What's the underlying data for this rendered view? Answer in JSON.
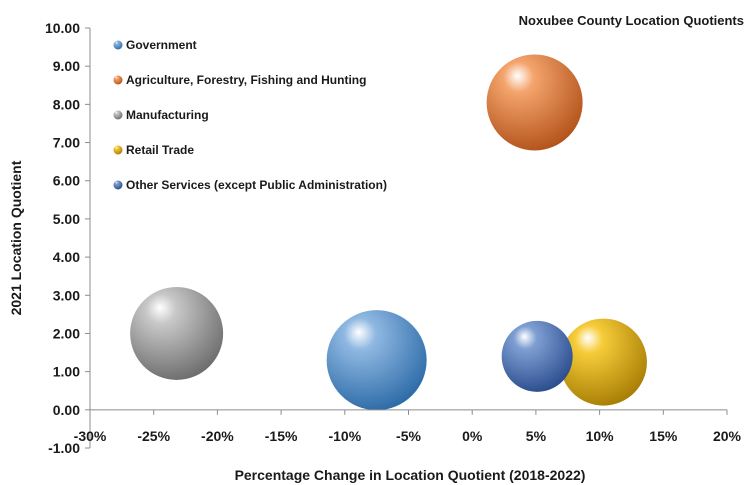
{
  "chart_data": {
    "type": "bubble",
    "title": "Noxubee County Location Quotients",
    "xlabel": "Percentage Change in Location Quotient (2018-2022)",
    "ylabel": "2021 Location Quotient",
    "xlim": [
      -30,
      20
    ],
    "ylim": [
      -1,
      10
    ],
    "x_ticks": [
      -30,
      -25,
      -20,
      -15,
      -10,
      -5,
      0,
      5,
      10,
      15,
      20
    ],
    "x_tick_labels": [
      "-30%",
      "-25%",
      "-20%",
      "-15%",
      "-10%",
      "-5%",
      "0%",
      "5%",
      "10%",
      "15%",
      "20%"
    ],
    "y_ticks": [
      -1,
      0,
      1,
      2,
      3,
      4,
      5,
      6,
      7,
      8,
      9,
      10
    ],
    "y_tick_labels": [
      "-1.00",
      "0.00",
      "1.00",
      "2.00",
      "3.00",
      "4.00",
      "5.00",
      "6.00",
      "7.00",
      "8.00",
      "9.00",
      "10.00"
    ],
    "grid": false,
    "legend_position": "top-left",
    "series": [
      {
        "name": "Government",
        "x": -7.5,
        "y": 1.3,
        "relative_size": 1.0,
        "color": "#8fb8e2",
        "shade": "#2e6ca8"
      },
      {
        "name": "Agriculture, Forestry, Fishing and Hunting",
        "x": 4.9,
        "y": 8.05,
        "relative_size": 0.96,
        "color": "#f4a46c",
        "shade": "#b3541c"
      },
      {
        "name": "Manufacturing",
        "x": -23.2,
        "y": 2.0,
        "relative_size": 0.93,
        "color": "#c8c8c8",
        "shade": "#6e6e6e"
      },
      {
        "name": "Retail Trade",
        "x": 10.3,
        "y": 1.25,
        "relative_size": 0.87,
        "color": "#f7cc3a",
        "shade": "#a87f05"
      },
      {
        "name": "Other Services (except Public Administration)",
        "x": 5.1,
        "y": 1.4,
        "relative_size": 0.71,
        "color": "#7f9fd3",
        "shade": "#2c4e8e"
      }
    ]
  }
}
